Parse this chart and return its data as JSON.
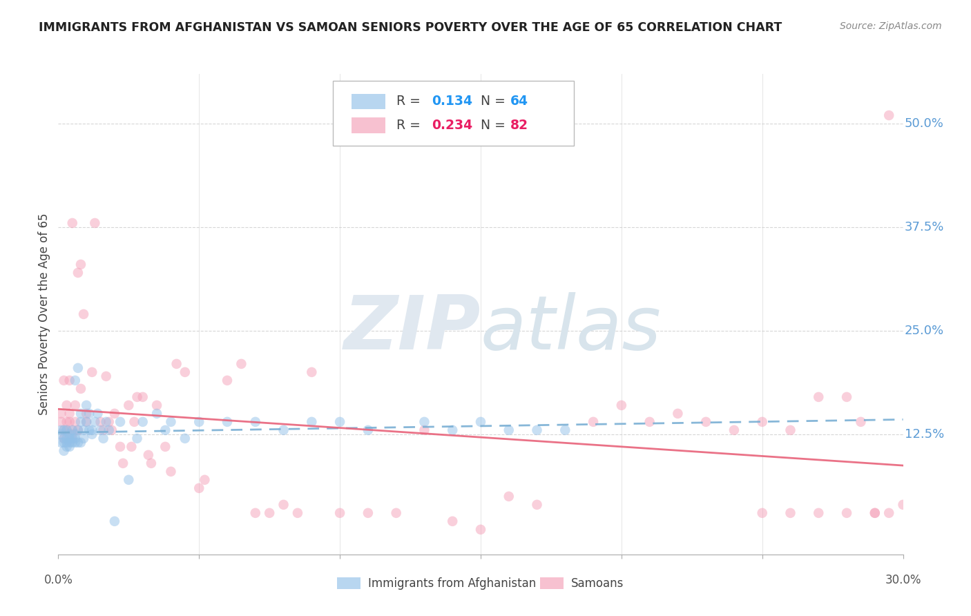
{
  "title": "IMMIGRANTS FROM AFGHANISTAN VS SAMOAN SENIORS POVERTY OVER THE AGE OF 65 CORRELATION CHART",
  "source": "Source: ZipAtlas.com",
  "ylabel": "Seniors Poverty Over the Age of 65",
  "legend_label1": "Immigrants from Afghanistan",
  "legend_label2": "Samoans",
  "R1": 0.134,
  "N1": 64,
  "R2": 0.234,
  "N2": 82,
  "color1": "#92C0E8",
  "color2": "#F4A0B8",
  "line1_color": "#7AAFD4",
  "line2_color": "#E8637A",
  "grid_color": "#CCCCCC",
  "ytick_color": "#5B9BD5",
  "title_color": "#222222",
  "xlim": [
    0.0,
    0.3
  ],
  "ylim": [
    -0.02,
    0.56
  ],
  "yticks": [
    0.0,
    0.125,
    0.25,
    0.375,
    0.5
  ],
  "ytick_labels": [
    "",
    "12.5%",
    "25.0%",
    "37.5%",
    "50.0%"
  ],
  "af_x": [
    0.001,
    0.001,
    0.001,
    0.002,
    0.002,
    0.002,
    0.002,
    0.003,
    0.003,
    0.003,
    0.003,
    0.004,
    0.004,
    0.004,
    0.004,
    0.005,
    0.005,
    0.005,
    0.006,
    0.006,
    0.006,
    0.006,
    0.007,
    0.007,
    0.007,
    0.008,
    0.008,
    0.008,
    0.009,
    0.009,
    0.01,
    0.01,
    0.011,
    0.011,
    0.012,
    0.012,
    0.013,
    0.014,
    0.015,
    0.016,
    0.017,
    0.018,
    0.02,
    0.022,
    0.025,
    0.028,
    0.03,
    0.035,
    0.038,
    0.04,
    0.045,
    0.05,
    0.06,
    0.07,
    0.08,
    0.09,
    0.1,
    0.11,
    0.13,
    0.14,
    0.15,
    0.16,
    0.17,
    0.18
  ],
  "af_y": [
    0.115,
    0.125,
    0.13,
    0.105,
    0.12,
    0.13,
    0.115,
    0.11,
    0.12,
    0.13,
    0.115,
    0.12,
    0.115,
    0.125,
    0.11,
    0.13,
    0.115,
    0.12,
    0.125,
    0.19,
    0.115,
    0.12,
    0.205,
    0.13,
    0.115,
    0.15,
    0.14,
    0.115,
    0.13,
    0.12,
    0.16,
    0.14,
    0.13,
    0.15,
    0.125,
    0.13,
    0.14,
    0.15,
    0.13,
    0.12,
    0.14,
    0.13,
    0.02,
    0.14,
    0.07,
    0.12,
    0.14,
    0.15,
    0.13,
    0.14,
    0.12,
    0.14,
    0.14,
    0.14,
    0.13,
    0.14,
    0.14,
    0.13,
    0.14,
    0.13,
    0.14,
    0.13,
    0.13,
    0.13
  ],
  "sa_x": [
    0.001,
    0.001,
    0.002,
    0.002,
    0.002,
    0.003,
    0.003,
    0.003,
    0.004,
    0.004,
    0.004,
    0.005,
    0.005,
    0.005,
    0.006,
    0.006,
    0.007,
    0.007,
    0.008,
    0.008,
    0.009,
    0.01,
    0.01,
    0.012,
    0.013,
    0.015,
    0.016,
    0.017,
    0.018,
    0.019,
    0.02,
    0.022,
    0.023,
    0.025,
    0.026,
    0.027,
    0.028,
    0.03,
    0.032,
    0.033,
    0.035,
    0.038,
    0.04,
    0.042,
    0.045,
    0.05,
    0.052,
    0.06,
    0.065,
    0.07,
    0.075,
    0.08,
    0.085,
    0.09,
    0.1,
    0.11,
    0.12,
    0.13,
    0.14,
    0.15,
    0.16,
    0.17,
    0.19,
    0.2,
    0.21,
    0.22,
    0.23,
    0.24,
    0.25,
    0.26,
    0.27,
    0.28,
    0.285,
    0.29,
    0.295,
    0.3,
    0.25,
    0.26,
    0.27,
    0.28,
    0.29,
    0.295
  ],
  "sa_y": [
    0.14,
    0.15,
    0.13,
    0.12,
    0.19,
    0.14,
    0.16,
    0.13,
    0.14,
    0.15,
    0.19,
    0.125,
    0.13,
    0.38,
    0.14,
    0.16,
    0.13,
    0.32,
    0.33,
    0.18,
    0.27,
    0.15,
    0.14,
    0.2,
    0.38,
    0.14,
    0.13,
    0.195,
    0.14,
    0.13,
    0.15,
    0.11,
    0.09,
    0.16,
    0.11,
    0.14,
    0.17,
    0.17,
    0.1,
    0.09,
    0.16,
    0.11,
    0.08,
    0.21,
    0.2,
    0.06,
    0.07,
    0.19,
    0.21,
    0.03,
    0.03,
    0.04,
    0.03,
    0.2,
    0.03,
    0.03,
    0.03,
    0.13,
    0.02,
    0.01,
    0.05,
    0.04,
    0.14,
    0.16,
    0.14,
    0.15,
    0.14,
    0.13,
    0.14,
    0.13,
    0.17,
    0.17,
    0.14,
    0.03,
    0.03,
    0.04,
    0.03,
    0.03,
    0.03,
    0.03,
    0.03,
    0.51
  ]
}
